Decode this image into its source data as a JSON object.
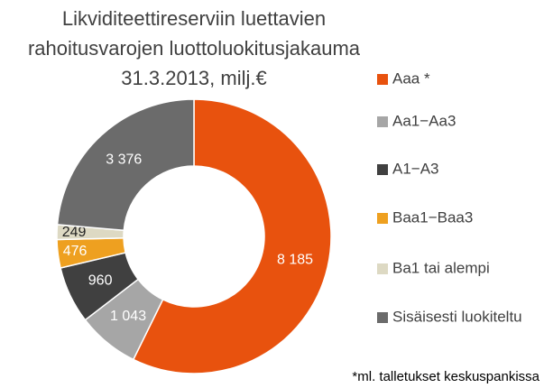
{
  "chart_data": {
    "type": "donut",
    "title": [
      "Likviditeettireserviin luettavien",
      "rahoitusvarojen luottoluokitusjakauma",
      "31.3.2013, milj.€"
    ],
    "categories": [
      "Aaa *",
      "Aa1−Aa3",
      "A1−A3",
      "Baa1−Baa3",
      "Ba1 tai alempi",
      "Sisäisesti luokiteltu"
    ],
    "values": [
      8185,
      1043,
      960,
      476,
      249,
      3376
    ],
    "value_labels": [
      "8 185",
      "1 043",
      "960",
      "476",
      "249",
      "3 376"
    ],
    "colors": [
      "#e8520e",
      "#a6a6a6",
      "#404040",
      "#eea020",
      "#ddd9c3",
      "#6b6b6b"
    ],
    "legend": "right",
    "annotation": "*ml. talletukset keskuspankissa"
  }
}
